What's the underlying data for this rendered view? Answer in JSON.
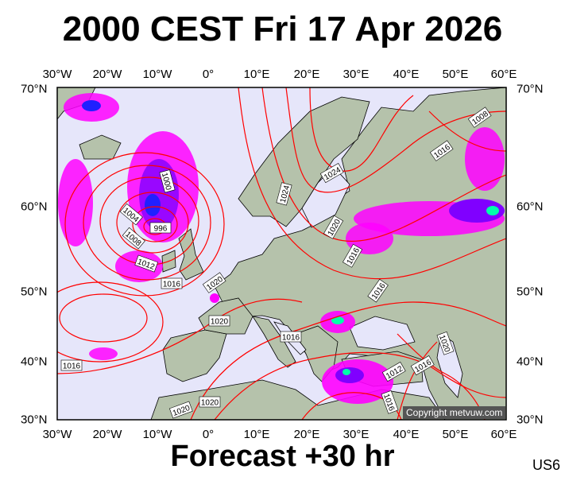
{
  "header": {
    "title": "2000 CEST Fri 17 Apr 2026"
  },
  "footer": {
    "forecast": "Forecast +30 hr",
    "model_code": "US6"
  },
  "map": {
    "copyright": "Copyright metvuw.com",
    "lon_ticks": [
      "30°W",
      "20°W",
      "10°W",
      "0°",
      "10°E",
      "20°E",
      "30°E",
      "40°E",
      "50°E",
      "60°E"
    ],
    "lat_ticks": [
      "70°N",
      "60°N",
      "50°N",
      "40°N",
      "30°N"
    ],
    "isobar_labels": [
      "1000",
      "1004",
      "996",
      "1008",
      "1012",
      "1016",
      "1020",
      "1024",
      "1024",
      "1020",
      "1016",
      "1016",
      "1020",
      "1016",
      "1020",
      "1016",
      "1012",
      "1016",
      "1020",
      "1020",
      "1016",
      "1016",
      "1008"
    ],
    "colors": {
      "sea": "#e6e6fa",
      "land": "#b5c2ab",
      "isobar": "#ff0000",
      "precip_light": "#ff00ff",
      "precip_mid": "#8000ff",
      "precip_heavy": "#2020ff",
      "precip_extreme": "#00ffaa"
    }
  }
}
